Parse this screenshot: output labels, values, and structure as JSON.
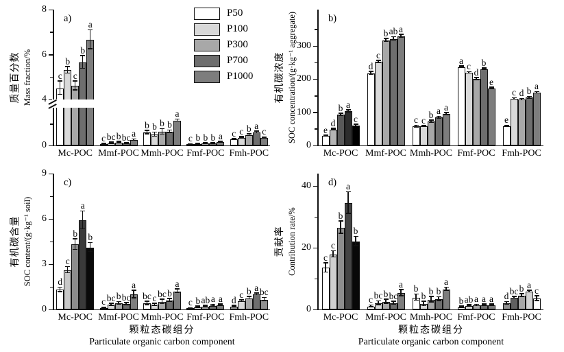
{
  "figure": {
    "background": "#ffffff",
    "ink": "#111111"
  },
  "legend": {
    "items": [
      {
        "label": "P50",
        "color": "#ffffff"
      },
      {
        "label": "P100",
        "color": "#d9d9d9"
      },
      {
        "label": "P300",
        "color": "#a8a8a8"
      },
      {
        "label": "P700",
        "color": "#6e6e6e"
      },
      {
        "label": "P1000",
        "color": "#7d7d7d"
      }
    ]
  },
  "chart_data": {
    "type": "bar",
    "categories": [
      "Mc-POC",
      "Mmf-POC",
      "Mmh-POC",
      "Fmf-POC",
      "Fmh-POC"
    ],
    "series": [
      "P50",
      "P100",
      "P300",
      "P700",
      "P1000"
    ],
    "series_colors": [
      "#ffffff",
      "#d9d9d9",
      "#a8a8a8",
      "#6e6e6e",
      "#7d7d7d"
    ],
    "xlabel_zh": "颗粒态碳组分",
    "xlabel_en": "Particulate organic carbon component",
    "panels": [
      {
        "id": "a",
        "tag": "a)",
        "ylabel_zh": "质量百分数",
        "ylabel_en": "Mass fraction/%",
        "axis": {
          "type": "broken",
          "majors": [
            0,
            4,
            6,
            8
          ],
          "minors_low": [
            2
          ],
          "minors_high": [
            5,
            7
          ],
          "ymax": 8,
          "break_low_max": 3.5
        },
        "values": [
          [
            4.5,
            5.3,
            4.6,
            5.65,
            6.65
          ],
          [
            0.1,
            0.22,
            0.28,
            0.18,
            0.5
          ],
          [
            1.2,
            1.0,
            1.25,
            1.25,
            2.3
          ],
          [
            0.08,
            0.15,
            0.17,
            0.17,
            0.3
          ],
          [
            0.55,
            0.72,
            0.95,
            1.2,
            0.7
          ]
        ],
        "errors": [
          [
            0.3,
            0.15,
            0.2,
            0.28,
            0.42
          ],
          [
            0.03,
            0.04,
            0.05,
            0.03,
            0.07
          ],
          [
            0.15,
            0.2,
            0.25,
            0.12,
            0.1
          ],
          [
            0.02,
            0.03,
            0.03,
            0.03,
            0.04
          ],
          [
            0.05,
            0.05,
            0.08,
            0.08,
            0.06
          ]
        ],
        "letters": [
          [
            "c",
            "b",
            "c",
            "b",
            "a"
          ],
          [
            "c",
            "bc",
            "b",
            "bc",
            "a"
          ],
          [
            "b",
            "b",
            "b",
            "b",
            "a"
          ],
          [
            "c",
            "b",
            "b",
            "b",
            "a"
          ],
          [
            "c",
            "c",
            "b",
            "a",
            "c"
          ]
        ]
      },
      {
        "id": "b",
        "tag": "b)",
        "ylabel_zh": "有机碳浓度",
        "ylabel_en": "SOC concentration/(g·kg⁻¹ aggregate)",
        "axis": {
          "type": "linear",
          "majors": [
            0,
            100,
            200,
            300
          ],
          "minors": [
            50,
            150,
            250,
            350
          ],
          "ymax": 410
        },
        "values": [
          [
            28,
            48,
            93,
            103,
            60
          ],
          [
            218,
            252,
            317,
            322,
            330
          ],
          [
            57,
            57,
            72,
            84,
            95
          ],
          [
            237,
            219,
            200,
            230,
            172
          ],
          [
            58,
            140,
            138,
            144,
            159
          ]
        ],
        "errors": [
          [
            2,
            2,
            3,
            3,
            3
          ],
          [
            4,
            3,
            4,
            5,
            4
          ],
          [
            3,
            2,
            3,
            3,
            3
          ],
          [
            2,
            2,
            3,
            2,
            2
          ],
          [
            2,
            2,
            2,
            3,
            2
          ]
        ],
        "letters": [
          [
            "e",
            "d",
            "b",
            "a",
            "c"
          ],
          [
            "d",
            "c",
            "b",
            "ab",
            "a"
          ],
          [
            "c",
            "c",
            "b",
            "a",
            "a"
          ],
          [
            "a",
            "c",
            "d",
            "b",
            "e"
          ],
          [
            "e",
            "c",
            "d",
            "b",
            "a"
          ]
        ],
        "color_overrides": {
          "0": [
            "#ffffff",
            "#b5b5b5",
            "#595959",
            "#2d2d2d",
            "#000000"
          ]
        }
      },
      {
        "id": "c",
        "tag": "c)",
        "ylabel_zh": "有机碳含量",
        "ylabel_en": "SOC content/(g·kg⁻¹ soil)",
        "axis": {
          "type": "linear",
          "majors": [
            0,
            3,
            6,
            9
          ],
          "minors": [
            1.5,
            4.5,
            7.5
          ],
          "ymax": 9
        },
        "values": [
          [
            1.3,
            2.6,
            4.3,
            5.9,
            4.1
          ],
          [
            0.1,
            0.3,
            0.42,
            0.35,
            1.0
          ],
          [
            0.4,
            0.3,
            0.5,
            0.6,
            1.2
          ],
          [
            0.07,
            0.15,
            0.2,
            0.25,
            0.28
          ],
          [
            0.2,
            0.55,
            0.75,
            1.0,
            0.65
          ]
        ],
        "errors": [
          [
            0.15,
            0.2,
            0.35,
            0.6,
            0.3
          ],
          [
            0.03,
            0.07,
            0.08,
            0.08,
            0.25
          ],
          [
            0.12,
            0.08,
            0.15,
            0.1,
            0.12
          ],
          [
            0.02,
            0.04,
            0.05,
            0.05,
            0.05
          ],
          [
            0.05,
            0.06,
            0.08,
            0.06,
            0.12
          ]
        ],
        "letters": [
          [
            "d",
            "c",
            "b",
            "a",
            "b"
          ],
          [
            "c",
            "bc",
            "b",
            "bc",
            "a"
          ],
          [
            "bc",
            "c",
            "bc",
            "b",
            "a"
          ],
          [
            "c",
            "b",
            "ab",
            "a",
            "a"
          ],
          [
            "d",
            "c",
            "b",
            "a",
            "bc"
          ]
        ],
        "color_overrides": {
          "0": [
            "#ffffff",
            "#c8c8c8",
            "#8c8c8c",
            "#3a3a3a",
            "#0a0a0a"
          ],
          "4": [
            "#9a9a9a",
            "#d9d9d9",
            "#a8a8a8",
            "#6e6e6e",
            "#8f8f8f"
          ]
        },
        "show_xlabel": true
      },
      {
        "id": "d",
        "tag": "d)",
        "ylabel_zh": "贡献率",
        "ylabel_en": "Contribution rate/%",
        "axis": {
          "type": "linear",
          "majors": [
            0,
            20,
            40
          ],
          "minors": [
            10,
            30
          ],
          "ymax": 44
        },
        "values": [
          [
            13.5,
            17.8,
            26.5,
            34.5,
            22
          ],
          [
            1.0,
            2.0,
            2.5,
            2.0,
            5.3
          ],
          [
            3.8,
            1.8,
            3.2,
            3.3,
            6.5
          ],
          [
            0.7,
            1.2,
            1.3,
            1.4,
            1.4
          ],
          [
            2.0,
            3.8,
            4.5,
            5.8,
            3.5
          ]
        ],
        "errors": [
          [
            1.5,
            1.0,
            2.0,
            3.5,
            1.5
          ],
          [
            0.3,
            0.6,
            0.7,
            0.5,
            1.0
          ],
          [
            1.0,
            0.7,
            0.9,
            0.6,
            0.6
          ],
          [
            0.2,
            0.2,
            0.2,
            0.2,
            0.2
          ],
          [
            0.4,
            0.3,
            0.5,
            0.3,
            0.8
          ]
        ],
        "letters": [
          [
            "c",
            "c",
            "b",
            "a",
            "b"
          ],
          [
            "c",
            "bc",
            "b",
            "bc",
            "a"
          ],
          [
            "b",
            "b",
            "b",
            "b",
            "a"
          ],
          [
            "b",
            "ab",
            "a",
            "a",
            "a"
          ],
          [
            "d",
            "bc",
            "b",
            "a",
            "c"
          ]
        ],
        "color_overrides": {
          "0": [
            "#ffffff",
            "#d0d0d0",
            "#8e8e8e",
            "#454545",
            "#080808"
          ],
          "4": [
            "#8f8f8f",
            "#606060",
            "#a8a8a8",
            "#d4d4d4",
            "#ffffff"
          ]
        },
        "show_xlabel": true
      }
    ]
  }
}
